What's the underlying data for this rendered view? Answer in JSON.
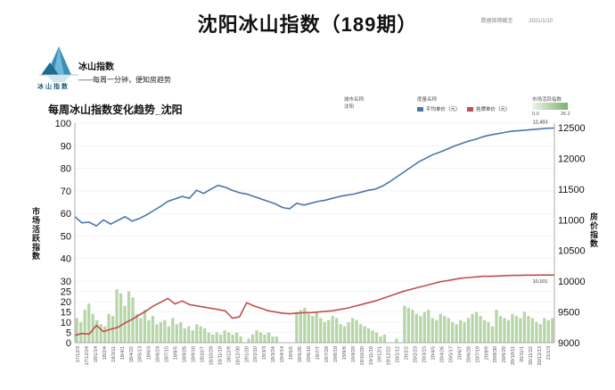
{
  "header": {
    "title": "沈阳冰山指数（189期）",
    "date_label": "数据周期截至",
    "date_value": "2021/1/10"
  },
  "brand": {
    "name": "冰山指数",
    "tagline": "——每周一分钟，便知房趋势",
    "logo_text": "冰山指数"
  },
  "chart_header": {
    "title": "每周冰山指数变化趋势_沈阳",
    "city_label": "城市名称:",
    "city_value": "沈阳",
    "legend_title": "度量名称",
    "legend_avg": "平均单价（元）",
    "legend_list": "挂牌单价（元）",
    "activity_label": "市场活跃指数",
    "activity_min": "0.0",
    "activity_max": "26.2"
  },
  "colors": {
    "avg_price": "#4a76a8",
    "list_price": "#c0504d",
    "activity": "#a9cf9a"
  },
  "chart_data": {
    "type": "line",
    "left_axis": {
      "label": "市场活跃指数",
      "ticks": [
        0,
        5,
        10,
        15,
        20,
        25,
        30,
        40,
        50,
        60,
        70,
        80,
        90,
        100
      ]
    },
    "right_axis": {
      "label": "房价指数",
      "ylim": [
        9000,
        12500
      ],
      "ticks": [
        9000,
        9500,
        10000,
        10500,
        11000,
        11500,
        12000,
        12500
      ]
    },
    "x_tick_labels": [
      "17/12/3",
      "17/12/24",
      "18/1/14",
      "18/2/4",
      "18/3/11",
      "18/4/1",
      "18/4/22",
      "18/5/13",
      "18/6/3",
      "18/6/24",
      "18/7/15",
      "18/8/5",
      "18/8/26",
      "18/9/16",
      "18/10/7",
      "18/10/28",
      "18/11/18",
      "18/12/9",
      "18/12/30",
      "19/1/20",
      "19/2/10",
      "19/3/3",
      "19/3/24",
      "19/4/14",
      "19/5/5",
      "19/5/26",
      "19/6/16",
      "19/7/7",
      "19/7/28",
      "19/8/18",
      "19/9/8",
      "19/9/29",
      "19/10/20",
      "19/11/10",
      "19/12/1",
      "19/12/22",
      "20/1/12",
      "20/2/2",
      "20/2/23",
      "20/3/15",
      "20/4/5",
      "20/4/26",
      "20/5/17",
      "20/6/7",
      "20/6/28",
      "20/7/19",
      "20/8/9",
      "20/8/30",
      "20/9/20",
      "20/10/11",
      "20/11/1",
      "20/11/22",
      "20/12/13",
      "21/1/3"
    ],
    "series": [
      {
        "name": "平均单价（元）",
        "end_label": "12,493",
        "values": [
          11050,
          10950,
          10960,
          10900,
          11000,
          10930,
          10990,
          11050,
          10980,
          11020,
          11080,
          11150,
          11220,
          11300,
          11340,
          11380,
          11350,
          11480,
          11430,
          11500,
          11560,
          11530,
          11480,
          11440,
          11420,
          11380,
          11340,
          11300,
          11260,
          11200,
          11180,
          11270,
          11240,
          11270,
          11300,
          11320,
          11350,
          11380,
          11400,
          11420,
          11450,
          11480,
          11500,
          11550,
          11620,
          11700,
          11780,
          11860,
          11940,
          12000,
          12060,
          12100,
          12150,
          12200,
          12240,
          12280,
          12310,
          12350,
          12380,
          12400,
          12420,
          12440,
          12450,
          12460,
          12470,
          12480,
          12490,
          12493
        ]
      },
      {
        "name": "挂牌单价（元）",
        "end_label": "10,101",
        "values": [
          9120,
          9150,
          9140,
          9280,
          9180,
          9220,
          9250,
          9320,
          9380,
          9450,
          9520,
          9600,
          9660,
          9720,
          9630,
          9680,
          9620,
          9600,
          9580,
          9560,
          9540,
          9520,
          9400,
          9420,
          9650,
          9600,
          9560,
          9520,
          9500,
          9480,
          9470,
          9480,
          9490,
          9490,
          9500,
          9510,
          9520,
          9540,
          9560,
          9590,
          9620,
          9650,
          9680,
          9720,
          9760,
          9800,
          9840,
          9870,
          9900,
          9930,
          9960,
          9990,
          10010,
          10030,
          10050,
          10060,
          10070,
          10080,
          10080,
          10085,
          10090,
          10095,
          10095,
          10100,
          10100,
          10101,
          10101,
          10101
        ]
      },
      {
        "name": "市场活跃指数",
        "values": [
          12,
          10,
          16,
          19,
          14,
          11,
          9,
          8,
          14,
          13,
          26,
          24,
          18,
          25,
          22,
          14,
          12,
          16,
          11,
          13,
          9,
          10,
          11,
          8,
          12,
          9,
          10,
          7,
          8,
          6,
          9,
          8,
          7,
          5,
          4,
          5,
          4,
          6,
          5,
          4,
          5,
          3,
          0,
          2,
          4,
          6,
          5,
          4,
          5,
          3,
          3,
          0,
          0,
          0,
          0,
          15,
          16,
          17,
          14,
          13,
          15,
          12,
          10,
          11,
          13,
          12,
          9,
          8,
          10,
          12,
          11,
          9,
          8,
          7,
          6,
          5,
          3,
          4,
          0,
          0,
          2,
          0,
          18,
          17,
          16,
          14,
          13,
          15,
          16,
          12,
          11,
          14,
          13,
          12,
          10,
          9,
          11,
          10,
          12,
          14,
          15,
          13,
          11,
          10,
          8,
          16,
          13,
          12,
          11,
          14,
          13,
          12,
          15,
          13,
          12,
          10,
          9,
          12,
          11,
          12
        ]
      }
    ]
  }
}
